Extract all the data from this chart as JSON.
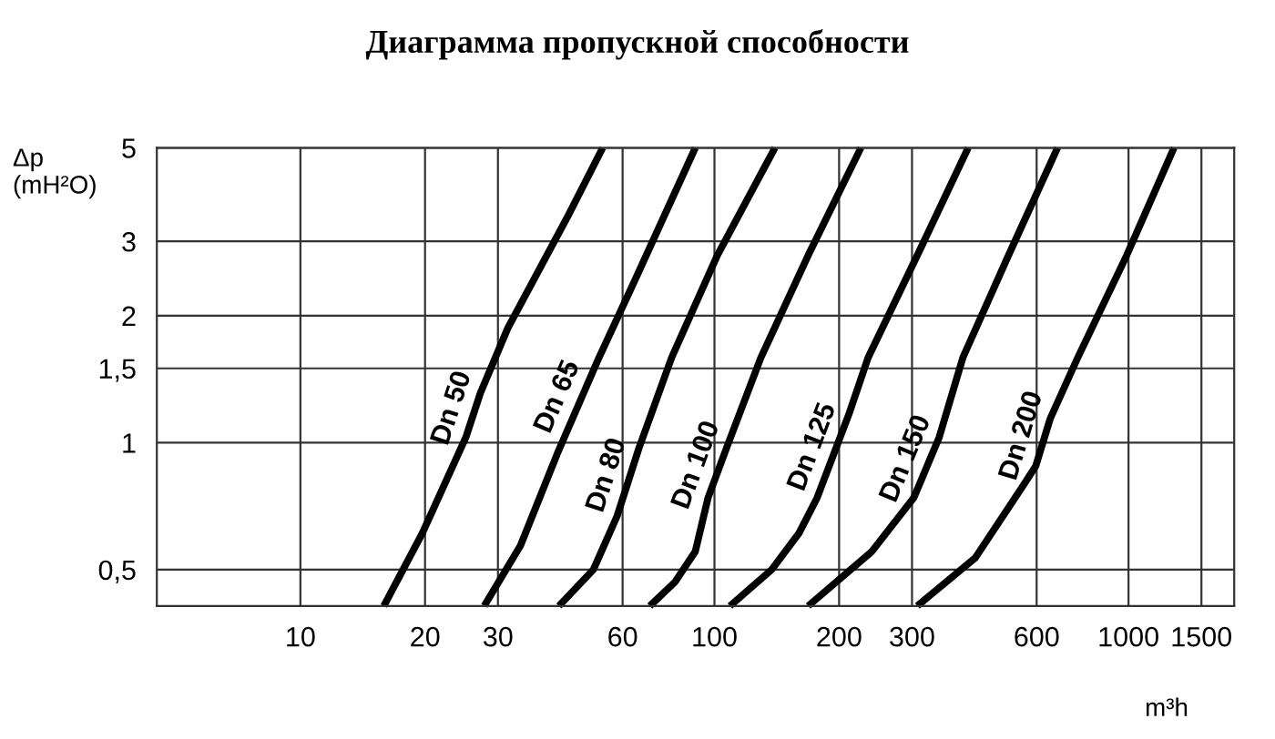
{
  "chart_data": {
    "type": "line",
    "title": "Диаграмма пропускной способности",
    "xlabel": "m³h",
    "ylabel": "Δp\n(mH²O)",
    "log": "xy",
    "grid": true,
    "legend": false,
    "marker": "none",
    "line_style": "solid",
    "xlim": [
      4.5,
      1800
    ],
    "ylim": [
      0.41,
      5
    ],
    "xticks": [
      10,
      20,
      30,
      60,
      100,
      200,
      300,
      600,
      1000,
      1500
    ],
    "yticks": [
      {
        "value": 0.5,
        "label": "0,5"
      },
      1,
      {
        "value": 1.5,
        "label": "1,5"
      },
      2,
      3,
      5
    ],
    "series": [
      {
        "name": "Dn 50",
        "color": "#000000",
        "x": [
          15.9,
          19.7,
          25.1,
          27.2,
          31.7,
          44.3,
          53.7
        ],
        "values": [
          0.41,
          0.61,
          1.03,
          1.31,
          1.87,
          3.45,
          5.0
        ]
      },
      {
        "name": "Dn 65",
        "color": "#000000",
        "x": [
          27.8,
          34.0,
          41.7,
          52.6,
          64.4,
          89.9
        ],
        "values": [
          0.41,
          0.57,
          0.94,
          1.59,
          2.44,
          5.0
        ]
      },
      {
        "name": "Dn 80",
        "color": "#000000",
        "x": [
          42.1,
          51.0,
          58.2,
          65.7,
          78.8,
          101.6,
          140
        ],
        "values": [
          0.41,
          0.5,
          0.67,
          0.97,
          1.59,
          2.78,
          5.0
        ]
      },
      {
        "name": "Dn 100",
        "color": "#000000",
        "x": [
          69.8,
          80.4,
          89.9,
          96.5,
          106.9,
          129.4,
          168.4,
          225.8
        ],
        "values": [
          0.41,
          0.468,
          0.552,
          0.74,
          0.97,
          1.59,
          2.78,
          5.0
        ]
      },
      {
        "name": "Dn 125",
        "color": "#000000",
        "x": [
          109,
          137.5,
          160,
          177,
          212,
          235,
          309,
          410
        ],
        "values": [
          0.41,
          0.5,
          0.61,
          0.74,
          1.18,
          1.59,
          2.78,
          5.0
        ]
      },
      {
        "name": "Dn 150",
        "color": "#000000",
        "x": [
          168.4,
          240,
          303,
          349,
          398,
          513,
          674
        ],
        "values": [
          0.41,
          0.552,
          0.74,
          1.03,
          1.59,
          2.78,
          5.0
        ]
      },
      {
        "name": "Dn 200",
        "color": "#000000",
        "x": [
          309,
          427,
          556,
          597,
          647,
          754,
          990,
          1288
        ],
        "values": [
          0.41,
          0.534,
          0.79,
          0.88,
          1.14,
          1.59,
          2.78,
          5.0
        ]
      }
    ]
  }
}
